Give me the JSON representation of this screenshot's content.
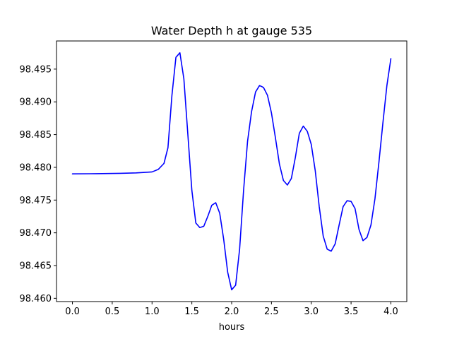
{
  "chart_data": {
    "type": "line",
    "title": "Water Depth h at gauge 535",
    "xlabel": "hours",
    "ylabel": "",
    "xlim": [
      -0.2,
      4.2
    ],
    "ylim": [
      98.4595,
      98.4993
    ],
    "xticks": [
      0.0,
      0.5,
      1.0,
      1.5,
      2.0,
      2.5,
      3.0,
      3.5,
      4.0
    ],
    "xtick_labels": [
      "0.0",
      "0.5",
      "1.0",
      "1.5",
      "2.0",
      "2.5",
      "3.0",
      "3.5",
      "4.0"
    ],
    "yticks": [
      98.46,
      98.465,
      98.47,
      98.475,
      98.48,
      98.485,
      98.49,
      98.495
    ],
    "ytick_labels": [
      "98.460",
      "98.465",
      "98.470",
      "98.475",
      "98.480",
      "98.485",
      "98.490",
      "98.495"
    ],
    "grid": false,
    "series": [
      {
        "name": "",
        "color": "#0000ff",
        "x": [
          0.0,
          0.3,
          0.6,
          0.8,
          1.0,
          1.08,
          1.15,
          1.2,
          1.25,
          1.3,
          1.35,
          1.4,
          1.45,
          1.5,
          1.55,
          1.6,
          1.65,
          1.7,
          1.75,
          1.8,
          1.85,
          1.9,
          1.95,
          2.0,
          2.05,
          2.1,
          2.15,
          2.2,
          2.25,
          2.3,
          2.35,
          2.4,
          2.45,
          2.5,
          2.55,
          2.6,
          2.65,
          2.7,
          2.75,
          2.8,
          2.85,
          2.9,
          2.95,
          3.0,
          3.05,
          3.1,
          3.15,
          3.2,
          3.25,
          3.3,
          3.35,
          3.4,
          3.45,
          3.5,
          3.55,
          3.6,
          3.65,
          3.7,
          3.75,
          3.8,
          3.85,
          3.9,
          3.95,
          4.0
        ],
        "y": [
          98.479,
          98.47903,
          98.47908,
          98.47915,
          98.4793,
          98.4797,
          98.4806,
          98.483,
          98.491,
          98.4968,
          98.4975,
          98.4935,
          98.485,
          98.4765,
          98.4715,
          98.4708,
          98.471,
          98.4725,
          98.4742,
          98.4746,
          98.473,
          98.469,
          98.464,
          98.4613,
          98.462,
          98.4675,
          98.4765,
          98.484,
          98.4885,
          98.4915,
          98.4925,
          98.4922,
          98.491,
          98.4883,
          98.4845,
          98.4805,
          98.478,
          98.4773,
          98.4783,
          98.4815,
          98.4852,
          98.4863,
          98.4855,
          98.4835,
          98.4795,
          98.474,
          98.4695,
          98.4675,
          98.4672,
          98.4683,
          98.4712,
          98.474,
          98.4749,
          98.4748,
          98.4737,
          98.4705,
          98.4688,
          98.4693,
          98.4712,
          98.4752,
          98.4808,
          98.4868,
          98.4925,
          98.4966
        ]
      }
    ]
  }
}
